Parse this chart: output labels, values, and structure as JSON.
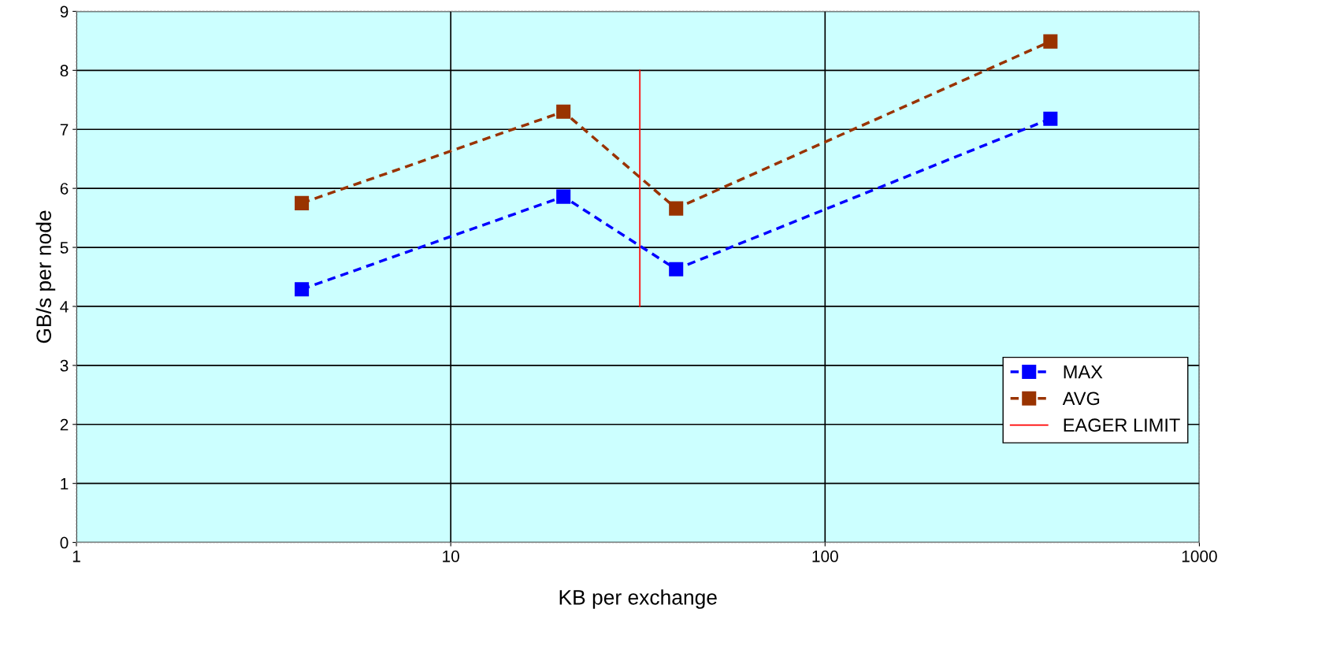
{
  "chart_data": {
    "type": "line",
    "xlabel": "KB per exchange",
    "ylabel": "GB/s per node",
    "log": "x",
    "xlim": [
      1,
      1000
    ],
    "xticks": [
      1,
      10,
      100,
      1000
    ],
    "ylim": [
      0,
      9
    ],
    "yticks": [
      0,
      1,
      2,
      3,
      4,
      5,
      6,
      7,
      8,
      9
    ],
    "grid": true,
    "legend": "bottom right",
    "x": [
      4,
      20,
      40,
      400
    ],
    "series": [
      {
        "name": "MAX",
        "color": "#0000ff",
        "values": [
          4.29,
          5.86,
          4.63,
          7.18
        ],
        "marker": "square",
        "line_style": "dashed"
      },
      {
        "name": "AVG",
        "color": "#993300",
        "values": [
          5.75,
          7.3,
          5.66,
          8.49
        ],
        "marker": "square",
        "line_style": "dashed"
      },
      {
        "name": "EAGER LIMIT",
        "color": "#ff0000",
        "x": [
          32,
          32
        ],
        "values": [
          4,
          8
        ],
        "marker": "none",
        "line_style": "solid"
      }
    ]
  }
}
